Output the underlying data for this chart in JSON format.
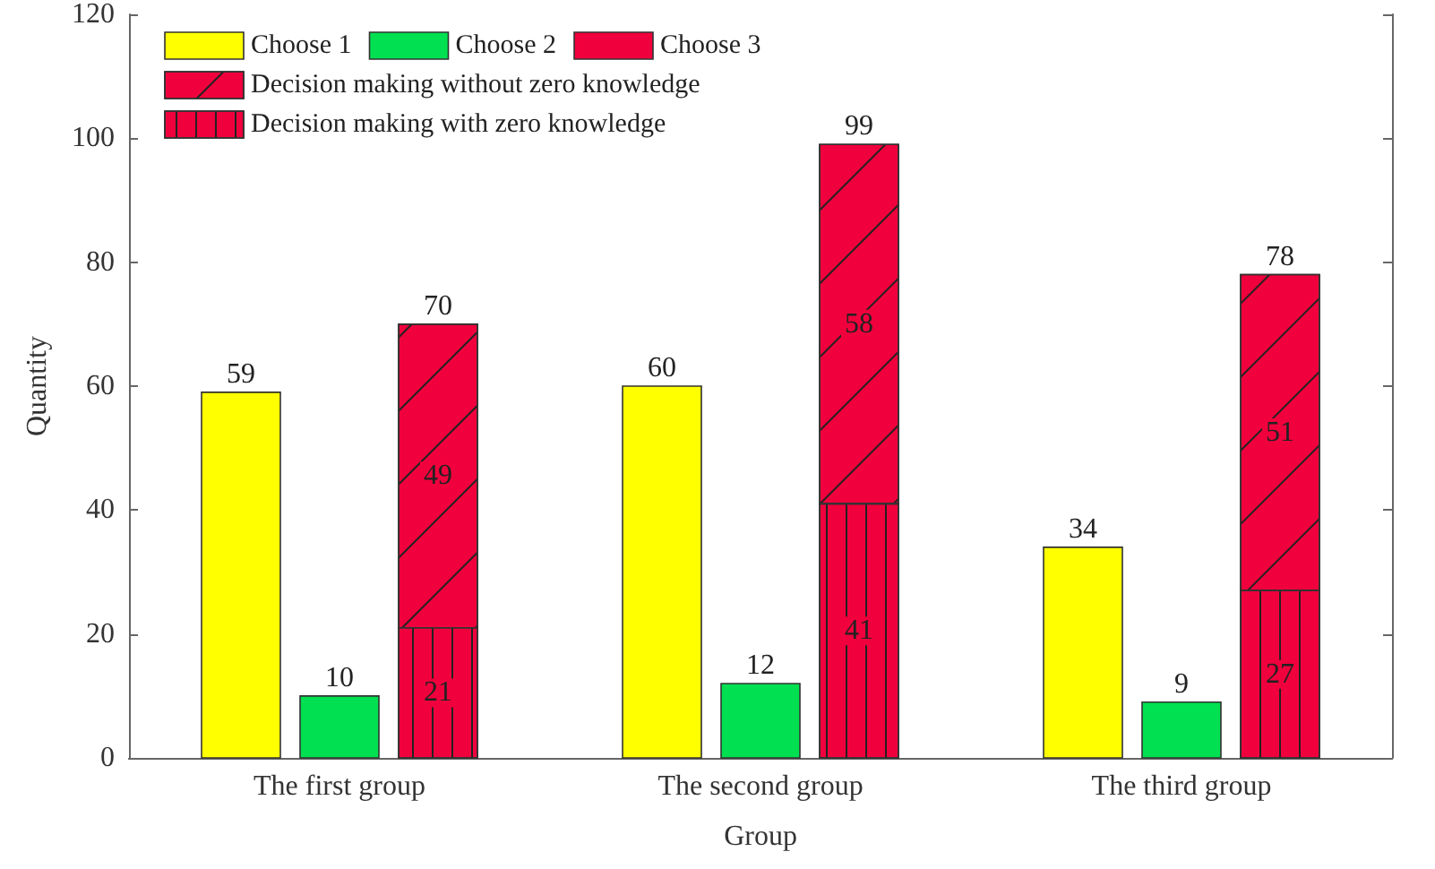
{
  "chart_data": {
    "type": "bar",
    "xlabel": "Group",
    "ylabel": "Quantity",
    "categories": [
      "The first group",
      "The second group",
      "The third group"
    ],
    "series": [
      {
        "name": "Choose 1",
        "color": "#ffff00",
        "values": [
          59,
          60,
          34
        ]
      },
      {
        "name": "Choose 2",
        "color": "#00e050",
        "values": [
          10,
          12,
          9
        ]
      },
      {
        "name": "Choose 3",
        "color": "#f0003c",
        "values": [
          null,
          null,
          null
        ]
      },
      {
        "name": "Decision making without zero knowledge",
        "color": "#f0003c",
        "values": [
          49,
          58,
          51
        ],
        "base": [
          21,
          41,
          27
        ]
      },
      {
        "name": "Decision making with zero knowledge",
        "color": "#f0003c",
        "values": [
          21,
          41,
          27
        ]
      }
    ],
    "annotations": [
      "70",
      "99",
      "78"
    ],
    "data_labels": true,
    "ylim": [
      0,
      120
    ],
    "yticks": [
      0,
      20,
      40,
      60,
      80,
      100,
      120
    ],
    "grid": false,
    "legend": "top left"
  }
}
